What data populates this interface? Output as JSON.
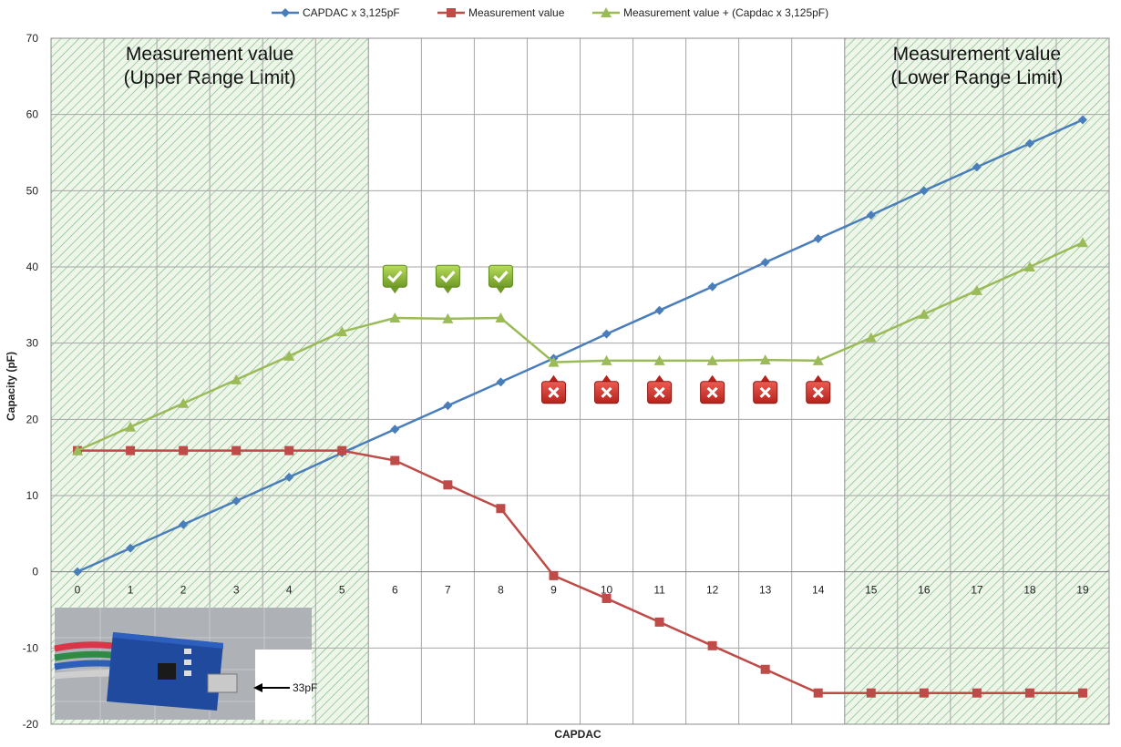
{
  "chart_data": {
    "type": "line",
    "xlabel": "CAPDAC",
    "ylabel": "Capacity (pF)",
    "x": [
      0,
      1,
      2,
      3,
      4,
      5,
      6,
      7,
      8,
      9,
      10,
      11,
      12,
      13,
      14,
      15,
      16,
      17,
      18,
      19
    ],
    "ylim": [
      -20,
      70
    ],
    "yticks": [
      -20,
      -10,
      0,
      10,
      20,
      30,
      40,
      50,
      60,
      70
    ],
    "grid": true,
    "legend_position": "top",
    "series": [
      {
        "name": "CAPDAC x 3,125pF",
        "color": "#4a7ebb",
        "marker": "diamond",
        "values": [
          0,
          3.1,
          6.2,
          9.3,
          12.4,
          15.6,
          18.7,
          21.8,
          24.9,
          28.0,
          31.2,
          34.3,
          37.4,
          40.6,
          43.7,
          46.8,
          50.0,
          53.1,
          56.2,
          59.3
        ]
      },
      {
        "name": "Measurement value",
        "color": "#be4b48",
        "marker": "square",
        "values": [
          15.9,
          15.9,
          15.9,
          15.9,
          15.9,
          15.9,
          14.6,
          11.4,
          8.3,
          -0.5,
          -3.5,
          -6.6,
          -9.7,
          -12.8,
          -15.9,
          -15.9,
          -15.9,
          -15.9,
          -15.9,
          -15.9
        ]
      },
      {
        "name": "Measurement value + (Capdac x 3,125pF)",
        "color": "#9bbb59",
        "marker": "triangle",
        "values": [
          15.9,
          19.0,
          22.1,
          25.2,
          28.3,
          31.5,
          33.3,
          33.2,
          33.3,
          27.5,
          27.7,
          27.7,
          27.7,
          27.8,
          27.7,
          30.7,
          33.8,
          36.9,
          40.0,
          43.2
        ]
      }
    ],
    "shaded_regions": [
      {
        "label_line1": "Measurement value",
        "label_line2": "(Upper Range Limit)",
        "x_from": 0,
        "x_to": 5
      },
      {
        "label_line1": "Measurement value",
        "label_line2": "(Lower Range Limit)",
        "x_from": 15,
        "x_to": 19
      }
    ],
    "check_marks_at_x": [
      6,
      7,
      8
    ],
    "cross_marks_at_x": [
      9,
      10,
      11,
      12,
      13,
      14
    ]
  },
  "inset": {
    "capacitor_label": "33pF"
  },
  "colors": {
    "hatch": "#79b87d",
    "check_green": "#8ab33a",
    "cross_red": "#d4342c"
  }
}
